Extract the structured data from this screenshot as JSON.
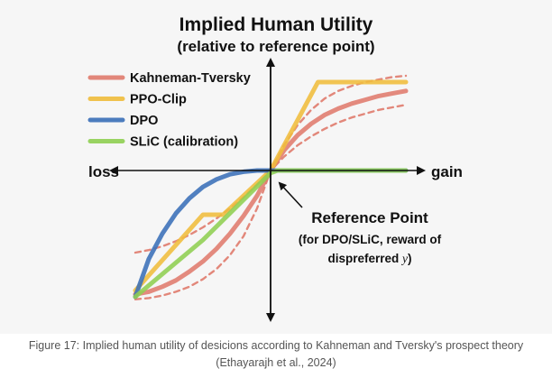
{
  "figure": {
    "title_line1": "Implied Human Utility",
    "title_line2": "(relative to reference point)",
    "caption_line1": "Figure 17: Implied human utility of desicions according to Kahneman and Tversky's prospect theory",
    "caption_line2": "(Ethayarajh et al., 2024)"
  },
  "chart_data": {
    "type": "line",
    "title": "Implied Human Utility",
    "subtitle": "(relative to reference point)",
    "xlabel_negative": "loss",
    "xlabel_positive": "gain",
    "axis_style": "arrows",
    "grid": false,
    "legend_placement": "top-left",
    "xlim": [
      -1,
      1
    ],
    "ylim": [
      -1,
      1
    ],
    "annotation": {
      "line1": "Reference Point",
      "line2": "(for DPO/SLiC, reward of",
      "line3_text": "dispreferred",
      "line3_var": "y",
      "line3_close": ")"
    },
    "series": [
      {
        "name": "Kahneman-Tversky",
        "color": "#e07b6d",
        "style": "solid",
        "x": [
          -1,
          -0.9,
          -0.8,
          -0.7,
          -0.6,
          -0.5,
          -0.4,
          -0.3,
          -0.2,
          -0.1,
          0,
          0.1,
          0.2,
          0.3,
          0.4,
          0.5,
          0.6,
          0.7,
          0.8,
          0.9,
          1
        ],
        "y": [
          -0.98,
          -0.96,
          -0.92,
          -0.87,
          -0.8,
          -0.72,
          -0.62,
          -0.5,
          -0.36,
          -0.2,
          0,
          0.16,
          0.28,
          0.37,
          0.44,
          0.49,
          0.53,
          0.56,
          0.59,
          0.61,
          0.63
        ]
      },
      {
        "name": "Kahneman-Tversky (upper band)",
        "color": "#e07b6d",
        "style": "dashed",
        "x": [
          -1,
          -0.9,
          -0.8,
          -0.7,
          -0.6,
          -0.5,
          -0.4,
          -0.3,
          -0.2,
          -0.1,
          0,
          0.1,
          0.2,
          0.3,
          0.4,
          0.5,
          0.6,
          0.7,
          0.8,
          0.9,
          1
        ],
        "y": [
          -0.65,
          -0.63,
          -0.6,
          -0.56,
          -0.51,
          -0.45,
          -0.38,
          -0.3,
          -0.21,
          -0.11,
          0,
          0.2,
          0.36,
          0.48,
          0.57,
          0.63,
          0.67,
          0.7,
          0.72,
          0.74,
          0.75
        ]
      },
      {
        "name": "Kahneman-Tversky (lower band)",
        "color": "#e07b6d",
        "style": "dashed",
        "x": [
          -1,
          -0.9,
          -0.8,
          -0.7,
          -0.6,
          -0.5,
          -0.4,
          -0.3,
          -0.2,
          -0.1,
          0,
          0.1,
          0.2,
          0.3,
          0.4,
          0.5,
          0.6,
          0.7,
          0.8,
          0.9,
          1
        ],
        "y": [
          -1.02,
          -1.01,
          -0.99,
          -0.96,
          -0.92,
          -0.86,
          -0.78,
          -0.67,
          -0.52,
          -0.3,
          0,
          0.11,
          0.2,
          0.27,
          0.33,
          0.38,
          0.42,
          0.45,
          0.48,
          0.5,
          0.52
        ]
      },
      {
        "name": "PPO-Clip",
        "color": "#f0bd3c",
        "style": "solid",
        "x": [
          -1,
          -0.5,
          -0.35,
          0,
          0.35,
          0.6,
          1
        ],
        "y": [
          -0.95,
          -0.35,
          -0.35,
          0,
          0.7,
          0.7,
          0.7
        ]
      },
      {
        "name": "DPO",
        "color": "#3a6fb8",
        "style": "solid",
        "x": [
          -1,
          -0.9,
          -0.8,
          -0.7,
          -0.6,
          -0.5,
          -0.4,
          -0.3,
          -0.2,
          -0.1,
          0,
          0.2,
          0.5,
          0.8,
          1
        ],
        "y": [
          -1.0,
          -0.7,
          -0.5,
          -0.34,
          -0.22,
          -0.13,
          -0.07,
          -0.03,
          -0.01,
          0,
          0,
          0,
          0,
          0,
          0
        ]
      },
      {
        "name": "SLiC (calibration)",
        "color": "#8fcf52",
        "style": "solid",
        "x": [
          -1,
          -0.5,
          0,
          0.05,
          0.2,
          1
        ],
        "y": [
          -1.0,
          -0.55,
          -0.02,
          0,
          0,
          0
        ]
      }
    ]
  }
}
